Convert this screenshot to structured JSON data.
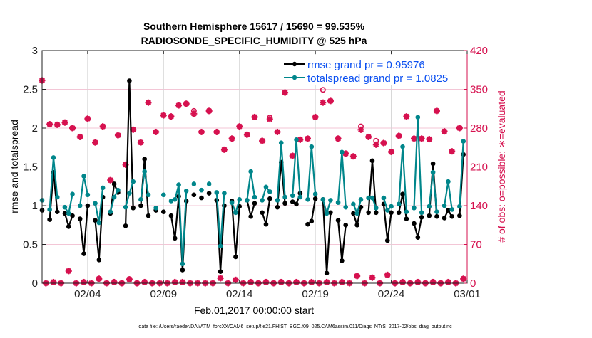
{
  "chart_data": {
    "type": "line",
    "title": [
      "Southern Hemisphere 15617 / 15690 = 99.535%",
      "RADIOSONDE_SPECIFIC_HUMIDITY @ 525 hPa"
    ],
    "xlabel": "Feb.01,2017 00:00:00 start",
    "ylabel": "rmse and totalspread",
    "ylabel_right": "# of obs: o=possible; ∗=evaluated",
    "footer": "data file: /Users/raeder/DAI/ATM_forcXX/CAM6_setup/f.e21.FHIST_BGC.f09_025.CAM6assim.011/Diags_NTrS_2017-02/obs_diag_output.nc",
    "x_start": "2017-02-01 00:00",
    "x_interval_hours": 6,
    "x_ticks": [
      "02/04",
      "02/09",
      "02/14",
      "02/19",
      "02/24",
      "03/01"
    ],
    "x_tick_days_since_start": [
      3,
      8,
      13,
      18,
      23,
      28
    ],
    "ylim": [
      0,
      3
    ],
    "y_ticks": [
      "0",
      "0.5",
      "1",
      "1.5",
      "2",
      "2.5",
      "3"
    ],
    "ylim_right": [
      0,
      420
    ],
    "y_ticks_right": [
      "0",
      "70",
      "140",
      "210",
      "280",
      "350",
      "420"
    ],
    "grid": true,
    "legend_placement": "top-right",
    "colors": {
      "rmse": "#000000",
      "totalspread": "#00868b",
      "obs": "#d6114f",
      "legend_text": "#0a4ff0"
    },
    "series": [
      {
        "name": "rmse grand pr = 0.95976",
        "axis": "left",
        "values": [
          0.94,
          null,
          0.82,
          1.43,
          0.92,
          null,
          0.9,
          0.73,
          0.87,
          null,
          0.83,
          0.38,
          1.0,
          null,
          0.81,
          0.3,
          1.11,
          null,
          0.9,
          1.28,
          1.17,
          null,
          0.74,
          2.61,
          0.97,
          null,
          1.0,
          1.6,
          0.87,
          null,
          0.94,
          null,
          0.92,
          null,
          0.87,
          0.58,
          1.12,
          0.17,
          1.06,
          null,
          1.14,
          null,
          1.1,
          null,
          1.16,
          null,
          1.07,
          0.15,
          1.0,
          null,
          1.06,
          0.34,
          0.99,
          null,
          1.07,
          0.86,
          1.03,
          null,
          0.91,
          0.76,
          1.09,
          null,
          0.98,
          1.56,
          1.03,
          null,
          1.05,
          1.02,
          1.16,
          null,
          0.76,
          0.8,
          1.09,
          null,
          1.08,
          0.13,
          0.91,
          null,
          0.81,
          0.29,
          0.75,
          null,
          0.9,
          0.75,
          0.98,
          null,
          0.91,
          1.58,
          0.91,
          null,
          1.02,
          0.55,
          0.91,
          null,
          0.91,
          1.15,
          0.83,
          null,
          0.77,
          0.59,
          0.85,
          null,
          0.87,
          1.54,
          0.86,
          null,
          0.84,
          0.94,
          0.86,
          null,
          0.87,
          1.66
        ]
      },
      {
        "name": "totalspread grand pr = 1.0825",
        "axis": "left",
        "values": [
          1.07,
          null,
          0.95,
          1.62,
          1.11,
          null,
          0.98,
          0.9,
          1.15,
          null,
          1.0,
          1.38,
          1.14,
          null,
          1.03,
          0.78,
          1.23,
          null,
          0.92,
          1.11,
          1.2,
          null,
          0.98,
          1.16,
          1.31,
          null,
          1.08,
          1.44,
          1.14,
          null,
          0.97,
          null,
          1.14,
          null,
          1.06,
          1.08,
          1.27,
          0.25,
          1.19,
          null,
          1.28,
          null,
          1.2,
          null,
          1.28,
          null,
          1.17,
          0.48,
          1.16,
          null,
          1.04,
          0.91,
          1.08,
          null,
          1.07,
          1.44,
          1.11,
          null,
          1.07,
          1.24,
          1.18,
          null,
          1.07,
          1.81,
          1.11,
          null,
          1.13,
          1.85,
          1.11,
          null,
          1.08,
          1.76,
          1.15,
          null,
          1.08,
          0.9,
          1.07,
          null,
          1.04,
          1.69,
          0.98,
          null,
          1.02,
          0.9,
          1.08,
          null,
          1.1,
          1.1,
          0.97,
          null,
          1.1,
          0.94,
          0.99,
          null,
          1.02,
          1.76,
          0.92,
          null,
          0.97,
          2.14,
          0.91,
          null,
          0.99,
          1.43,
          0.92,
          null,
          1.0,
          1.31,
          0.95,
          null,
          0.99,
          1.83
        ]
      },
      {
        "name": "possible",
        "axis": "right",
        "marker": "o",
        "values": [
          366,
          0,
          287,
          2,
          286,
          0,
          290,
          22,
          280,
          0,
          264,
          2,
          297,
          0,
          254,
          8,
          283,
          0,
          186,
          2,
          267,
          0,
          214,
          7,
          277,
          0,
          254,
          2,
          326,
          0,
          273,
          0,
          303,
          0,
          301,
          2,
          321,
          2,
          324,
          0,
          311,
          0,
          273,
          0,
          311,
          0,
          273,
          9,
          241,
          0,
          261,
          6,
          283,
          0,
          268,
          2,
          300,
          0,
          257,
          2,
          299,
          0,
          273,
          2,
          344,
          0,
          230,
          2,
          259,
          0,
          261,
          2,
          300,
          0,
          349,
          2,
          329,
          0,
          261,
          2,
          234,
          0,
          229,
          13,
          283,
          0,
          264,
          10,
          257,
          0,
          253,
          15,
          237,
          0,
          266,
          2,
          301,
          0,
          261,
          2,
          261,
          0,
          260,
          2,
          311,
          0,
          274,
          2,
          238,
          0,
          280,
          8
        ]
      },
      {
        "name": "evaluated",
        "axis": "right",
        "marker": "*",
        "values": [
          366,
          0,
          287,
          2,
          286,
          0,
          290,
          22,
          280,
          0,
          264,
          2,
          297,
          0,
          254,
          8,
          283,
          0,
          186,
          2,
          267,
          0,
          214,
          7,
          277,
          0,
          254,
          2,
          326,
          0,
          273,
          0,
          303,
          0,
          301,
          2,
          321,
          2,
          324,
          0,
          306,
          0,
          273,
          0,
          311,
          0,
          273,
          9,
          241,
          0,
          261,
          6,
          283,
          0,
          268,
          2,
          300,
          0,
          257,
          2,
          296,
          0,
          273,
          2,
          344,
          0,
          230,
          2,
          259,
          0,
          261,
          2,
          300,
          0,
          326,
          2,
          329,
          0,
          261,
          2,
          234,
          0,
          229,
          13,
          277,
          0,
          264,
          10,
          250,
          0,
          253,
          15,
          237,
          0,
          266,
          2,
          301,
          0,
          261,
          2,
          261,
          0,
          260,
          2,
          311,
          0,
          274,
          2,
          238,
          0,
          280,
          8
        ]
      }
    ]
  }
}
